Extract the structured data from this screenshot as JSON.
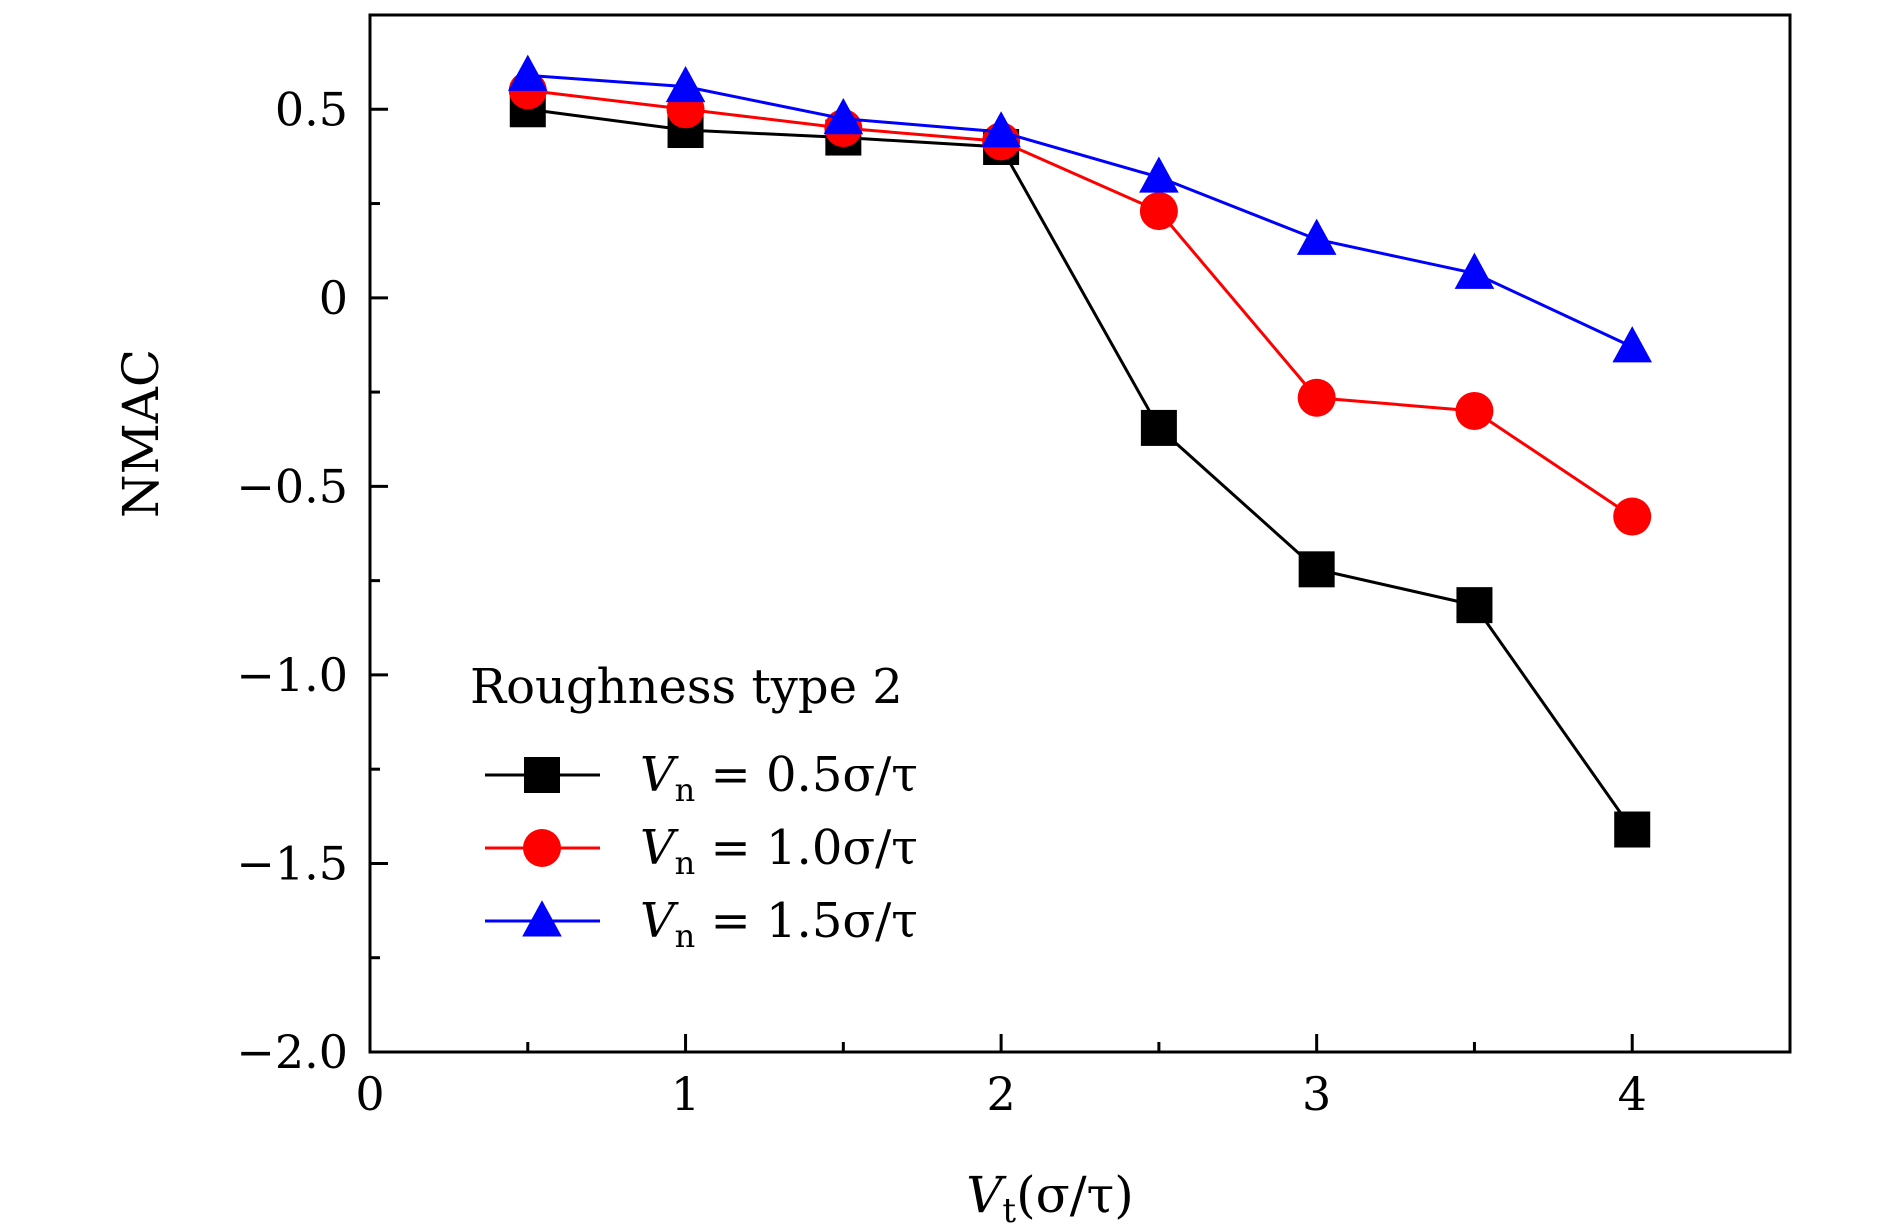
{
  "chart_data": {
    "type": "line",
    "title": "",
    "xlabel": "V_t(σ/τ)",
    "xlabel_main": "V",
    "xlabel_sub": "t",
    "xlabel_rest": "(σ/τ)",
    "ylabel": "NMAC",
    "xlim": [
      0,
      4.5
    ],
    "ylim": [
      -2.0,
      0.75
    ],
    "x_ticks": [
      0,
      1,
      2,
      3,
      4
    ],
    "x_tick_labels": [
      "0",
      "1",
      "2",
      "3",
      "4"
    ],
    "y_ticks": [
      0.5,
      0,
      -0.5,
      -1.0,
      -1.5,
      -2.0
    ],
    "y_tick_labels": [
      "0.5",
      "0",
      "−0.5",
      "−1.0",
      "−1.5",
      "−2.0"
    ],
    "grid": false,
    "legend_title": "Roughness type 2",
    "legend_position": "lower-left",
    "x": [
      0.5,
      1.0,
      1.5,
      2.0,
      2.5,
      3.0,
      3.5,
      4.0
    ],
    "series": [
      {
        "name": "V_n = 0.5σ/τ",
        "label_main": "V",
        "label_sub": "n",
        "label_rest": " = 0.5σ/τ",
        "color": "#000000",
        "marker": "square",
        "values": [
          0.5,
          0.445,
          0.425,
          0.4,
          -0.345,
          -0.72,
          -0.815,
          -1.41
        ]
      },
      {
        "name": "V_n = 1.0σ/τ",
        "label_main": "V",
        "label_sub": "n",
        "label_rest": " = 1.0σ/τ",
        "color": "#ff0000",
        "marker": "circle",
        "values": [
          0.55,
          0.5,
          0.45,
          0.415,
          0.23,
          -0.265,
          -0.3,
          -0.58
        ]
      },
      {
        "name": "V_n = 1.5σ/τ",
        "label_main": "V",
        "label_sub": "n",
        "label_rest": " = 1.5σ/τ",
        "color": "#0000ff",
        "marker": "triangle",
        "values": [
          0.59,
          0.56,
          0.475,
          0.44,
          0.32,
          0.155,
          0.065,
          -0.13
        ]
      }
    ]
  }
}
